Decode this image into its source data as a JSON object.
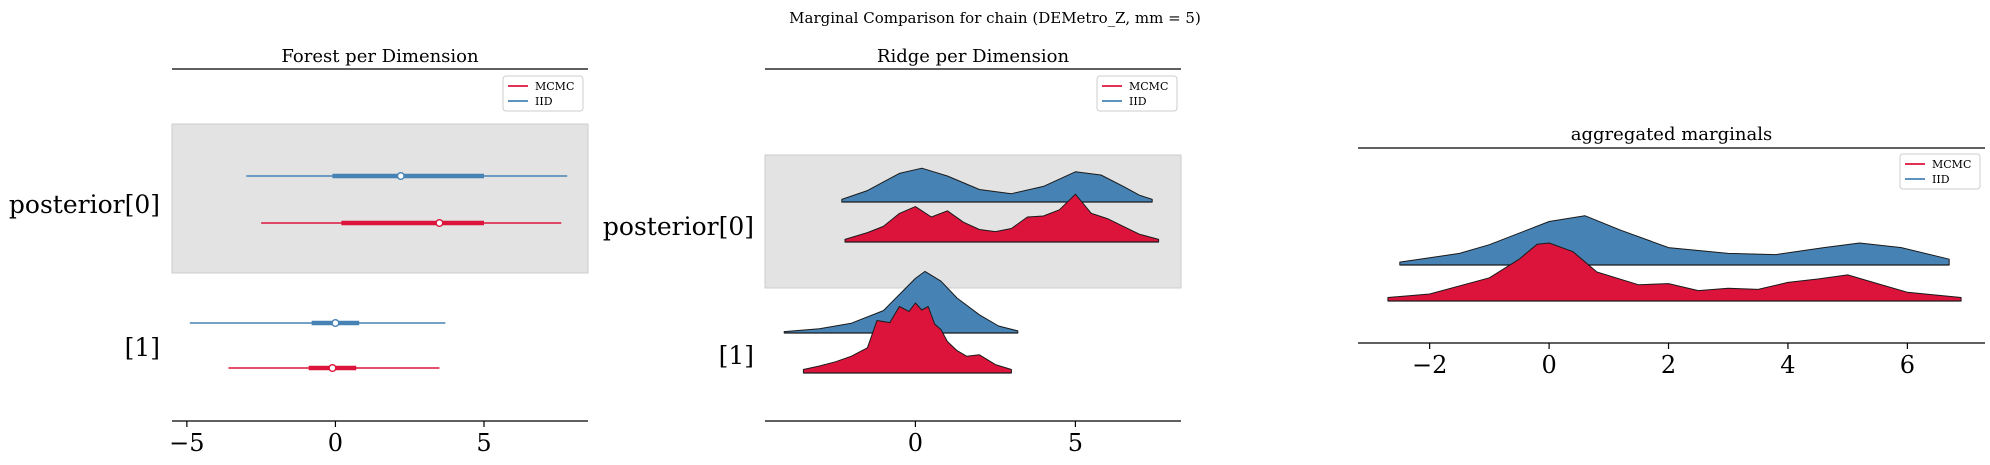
{
  "suptitle": "Marginal Comparison for chain (DEMetro_Z, mm = 5)",
  "colors": {
    "mcmc": "#dc143c",
    "iid": "#4682b4",
    "band": "#e3e3e3",
    "axis": "#000000"
  },
  "chart_data": [
    {
      "type": "forest",
      "title": "Forest per Dimension",
      "xlim": [
        -5.5,
        8.5
      ],
      "xticks": [
        -5,
        0,
        5
      ],
      "xtick_labels": [
        "−5",
        "0",
        "5"
      ],
      "legend": {
        "placement": "top-right",
        "entries": [
          "MCMC",
          "IID"
        ]
      },
      "rows": [
        {
          "label": "posterior[0]",
          "shaded": true,
          "series": [
            {
              "name": "IID",
              "hdi": [
                -3.0,
                7.8
              ],
              "iqr": [
                -0.1,
                5.0
              ],
              "median": 2.2
            },
            {
              "name": "MCMC",
              "hdi": [
                -2.5,
                7.6
              ],
              "iqr": [
                0.2,
                5.0
              ],
              "median": 3.5
            }
          ]
        },
        {
          "label": "[1]",
          "shaded": false,
          "series": [
            {
              "name": "IID",
              "hdi": [
                -4.9,
                3.7
              ],
              "iqr": [
                -0.8,
                0.8
              ],
              "median": 0.0
            },
            {
              "name": "MCMC",
              "hdi": [
                -3.6,
                3.5
              ],
              "iqr": [
                -0.9,
                0.7
              ],
              "median": -0.1
            }
          ]
        }
      ]
    },
    {
      "type": "ridge",
      "title": "Ridge per Dimension",
      "xlim": [
        -4.7,
        8.3
      ],
      "xticks": [
        0,
        5
      ],
      "xtick_labels": [
        "0",
        "5"
      ],
      "legend": {
        "placement": "top-right",
        "entries": [
          "MCMC",
          "IID"
        ]
      },
      "rows": [
        {
          "label": "posterior[0]",
          "shaded": true,
          "series": [
            {
              "name": "IID",
              "x": [
                -2.3,
                -1.5,
                -0.5,
                0.2,
                1.0,
                2.0,
                3.0,
                4.0,
                5.0,
                5.8,
                6.5,
                7.0,
                7.4
              ],
              "y": [
                0.05,
                0.22,
                0.55,
                0.65,
                0.5,
                0.24,
                0.16,
                0.3,
                0.58,
                0.52,
                0.3,
                0.13,
                0.05
              ]
            },
            {
              "name": "MCMC",
              "x": [
                -2.2,
                -1.5,
                -1.0,
                -0.5,
                0.0,
                0.5,
                1.0,
                1.5,
                2.0,
                2.5,
                3.0,
                3.5,
                4.0,
                4.5,
                5.0,
                5.5,
                6.0,
                6.5,
                7.0,
                7.6
              ],
              "y": [
                0.05,
                0.18,
                0.3,
                0.55,
                0.68,
                0.48,
                0.6,
                0.38,
                0.24,
                0.2,
                0.26,
                0.48,
                0.5,
                0.62,
                0.92,
                0.55,
                0.45,
                0.3,
                0.15,
                0.05
              ]
            }
          ]
        },
        {
          "label": "[1]",
          "shaded": false,
          "series": [
            {
              "name": "IID",
              "x": [
                -4.1,
                -3.0,
                -2.0,
                -1.0,
                -0.5,
                0.0,
                0.3,
                0.8,
                1.3,
                2.0,
                2.6,
                3.2
              ],
              "y": [
                0.02,
                0.06,
                0.14,
                0.32,
                0.55,
                0.78,
                0.88,
                0.74,
                0.5,
                0.26,
                0.1,
                0.03
              ]
            },
            {
              "name": "MCMC",
              "x": [
                -3.5,
                -3.0,
                -2.5,
                -2.0,
                -1.5,
                -1.2,
                -0.8,
                -0.5,
                -0.2,
                0.0,
                0.2,
                0.4,
                0.6,
                0.8,
                1.0,
                1.3,
                1.6,
                2.0,
                2.5,
                3.0
              ],
              "y": [
                0.05,
                0.1,
                0.16,
                0.24,
                0.36,
                0.75,
                0.72,
                0.95,
                0.88,
                1.0,
                0.9,
                0.95,
                0.7,
                0.62,
                0.45,
                0.32,
                0.24,
                0.26,
                0.12,
                0.05
              ]
            }
          ]
        }
      ]
    },
    {
      "type": "ridge",
      "title": "aggregated marginals",
      "xlim": [
        -3.2,
        7.3
      ],
      "xticks": [
        -2,
        0,
        2,
        4,
        6
      ],
      "xtick_labels": [
        "−2",
        "0",
        "2",
        "4",
        "6"
      ],
      "legend": {
        "placement": "top-right",
        "entries": [
          "MCMC",
          "IID"
        ]
      },
      "rows": [
        {
          "label": "",
          "shaded": false,
          "series": [
            {
              "name": "IID",
              "x": [
                -2.5,
                -1.5,
                -1.0,
                0.0,
                0.6,
                1.2,
                2.0,
                3.0,
                3.8,
                4.6,
                5.2,
                5.9,
                6.7
              ],
              "y": [
                0.05,
                0.2,
                0.35,
                0.75,
                0.85,
                0.6,
                0.3,
                0.2,
                0.18,
                0.3,
                0.38,
                0.3,
                0.1
              ]
            },
            {
              "name": "MCMC",
              "x": [
                -2.7,
                -2.0,
                -1.0,
                -0.5,
                -0.2,
                0.0,
                0.4,
                0.8,
                1.5,
                2.0,
                2.5,
                3.0,
                3.5,
                4.0,
                4.5,
                5.0,
                5.5,
                6.0,
                6.9
              ],
              "y": [
                0.06,
                0.12,
                0.4,
                0.72,
                0.98,
                1.0,
                0.85,
                0.5,
                0.28,
                0.3,
                0.18,
                0.22,
                0.2,
                0.32,
                0.38,
                0.45,
                0.3,
                0.15,
                0.06
              ]
            }
          ]
        }
      ]
    }
  ]
}
